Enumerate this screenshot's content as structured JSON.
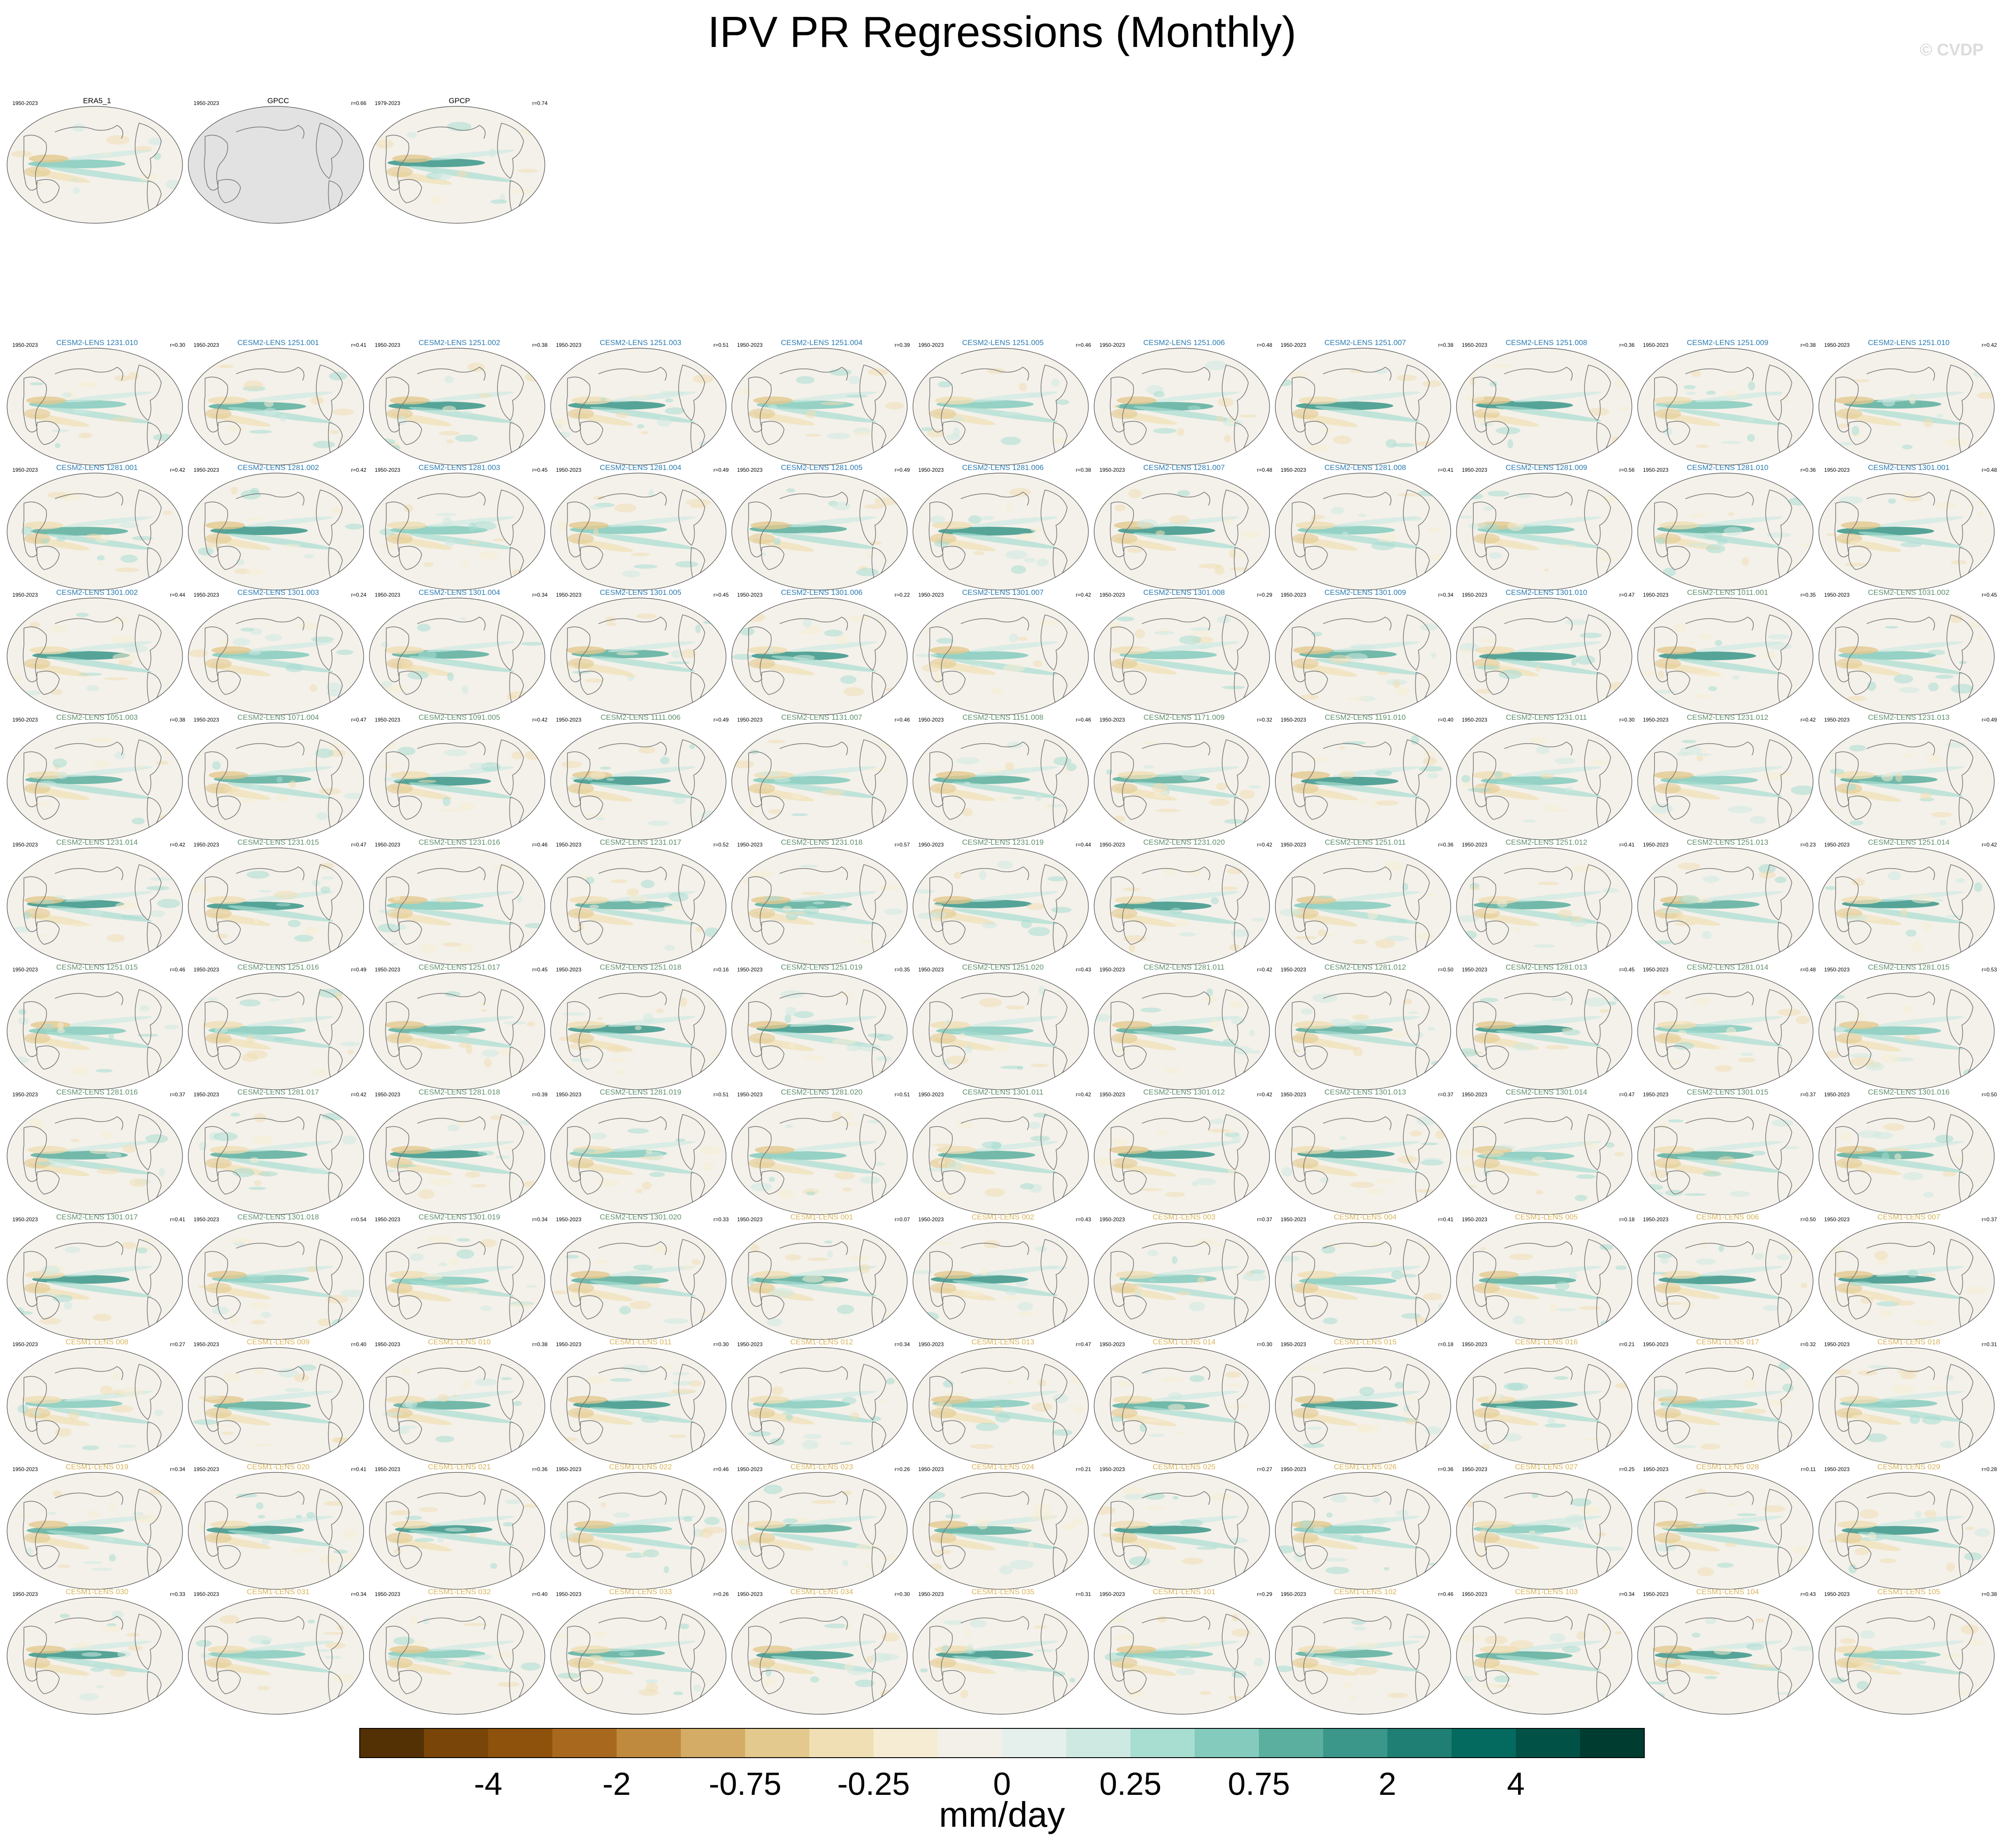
{
  "title": "IPV PR Regressions (Monthly)",
  "copyright": "© CVDP",
  "colors": {
    "cesm2_label": "#2b7bb0",
    "cesm2_smbb_label": "#5f8f6a",
    "cesm1_label": "#d9b45a",
    "obs_label": "#000000",
    "ocean_bg": "#f4f1ea",
    "missing_gray": "#e2e2e2"
  },
  "chart_data": {
    "type": "heatmap",
    "description_units": "mm/day",
    "colorbar": {
      "label": "mm/day",
      "tick_labels": [
        "-4",
        "-2",
        "-0.75",
        "-0.25",
        "0",
        "0.25",
        "0.75",
        "2",
        "4"
      ],
      "colors": [
        "#543005",
        "#7a4508",
        "#8f520c",
        "#a8691e",
        "#c08a3e",
        "#d4ac66",
        "#e3c98e",
        "#f0dfb4",
        "#f6ecd3",
        "#f3f0ea",
        "#e5f0ec",
        "#cde9e2",
        "#a8ddd1",
        "#84cbbd",
        "#5aaf9f",
        "#3a978a",
        "#1f7f74",
        "#046a60",
        "#015146",
        "#003c30"
      ]
    },
    "observations": [
      {
        "name": "ERA5_1",
        "years": "1950-2023",
        "r": ""
      },
      {
        "name": "GPCC",
        "years": "1950-2023",
        "r": "r=0.66"
      },
      {
        "name": "GPCP",
        "years": "1979-2023",
        "r": "r=0.74"
      }
    ],
    "members": [
      {
        "name": "CESM2-LENS 1231.010",
        "years": "1950-2023",
        "r": "r=0.30",
        "g": "c2"
      },
      {
        "name": "CESM2-LENS 1251.001",
        "years": "1950-2023",
        "r": "r=0.41",
        "g": "c2"
      },
      {
        "name": "CESM2-LENS 1251.002",
        "years": "1950-2023",
        "r": "r=0.38",
        "g": "c2"
      },
      {
        "name": "CESM2-LENS 1251.003",
        "years": "1950-2023",
        "r": "r=0.51",
        "g": "c2"
      },
      {
        "name": "CESM2-LENS 1251.004",
        "years": "1950-2023",
        "r": "r=0.39",
        "g": "c2"
      },
      {
        "name": "CESM2-LENS 1251.005",
        "years": "1950-2023",
        "r": "r=0.46",
        "g": "c2"
      },
      {
        "name": "CESM2-LENS 1251.006",
        "years": "1950-2023",
        "r": "r=0.48",
        "g": "c2"
      },
      {
        "name": "CESM2-LENS 1251.007",
        "years": "1950-2023",
        "r": "r=0.38",
        "g": "c2"
      },
      {
        "name": "CESM2-LENS 1251.008",
        "years": "1950-2023",
        "r": "r=0.36",
        "g": "c2"
      },
      {
        "name": "CESM2-LENS 1251.009",
        "years": "1950-2023",
        "r": "r=0.38",
        "g": "c2"
      },
      {
        "name": "CESM2-LENS 1251.010",
        "years": "1950-2023",
        "r": "r=0.42",
        "g": "c2"
      },
      {
        "name": "CESM2-LENS 1281.001",
        "years": "1950-2023",
        "r": "r=0.42",
        "g": "c2"
      },
      {
        "name": "CESM2-LENS 1281.002",
        "years": "1950-2023",
        "r": "r=0.42",
        "g": "c2"
      },
      {
        "name": "CESM2-LENS 1281.003",
        "years": "1950-2023",
        "r": "r=0.45",
        "g": "c2"
      },
      {
        "name": "CESM2-LENS 1281.004",
        "years": "1950-2023",
        "r": "r=0.49",
        "g": "c2"
      },
      {
        "name": "CESM2-LENS 1281.005",
        "years": "1950-2023",
        "r": "r=0.49",
        "g": "c2"
      },
      {
        "name": "CESM2-LENS 1281.006",
        "years": "1950-2023",
        "r": "r=0.38",
        "g": "c2"
      },
      {
        "name": "CESM2-LENS 1281.007",
        "years": "1950-2023",
        "r": "r=0.48",
        "g": "c2"
      },
      {
        "name": "CESM2-LENS 1281.008",
        "years": "1950-2023",
        "r": "r=0.41",
        "g": "c2"
      },
      {
        "name": "CESM2-LENS 1281.009",
        "years": "1950-2023",
        "r": "r=0.56",
        "g": "c2"
      },
      {
        "name": "CESM2-LENS 1281.010",
        "years": "1950-2023",
        "r": "r=0.36",
        "g": "c2"
      },
      {
        "name": "CESM2-LENS 1301.001",
        "years": "1950-2023",
        "r": "r=0.48",
        "g": "c2"
      },
      {
        "name": "CESM2-LENS 1301.002",
        "years": "1950-2023",
        "r": "r=0.44",
        "g": "c2"
      },
      {
        "name": "CESM2-LENS 1301.003",
        "years": "1950-2023",
        "r": "r=0.24",
        "g": "c2"
      },
      {
        "name": "CESM2-LENS 1301.004",
        "years": "1950-2023",
        "r": "r=0.34",
        "g": "c2"
      },
      {
        "name": "CESM2-LENS 1301.005",
        "years": "1950-2023",
        "r": "r=0.45",
        "g": "c2"
      },
      {
        "name": "CESM2-LENS 1301.006",
        "years": "1950-2023",
        "r": "r=0.22",
        "g": "c2"
      },
      {
        "name": "CESM2-LENS 1301.007",
        "years": "1950-2023",
        "r": "r=0.42",
        "g": "c2"
      },
      {
        "name": "CESM2-LENS 1301.008",
        "years": "1950-2023",
        "r": "r=0.29",
        "g": "c2"
      },
      {
        "name": "CESM2-LENS 1301.009",
        "years": "1950-2023",
        "r": "r=0.34",
        "g": "c2"
      },
      {
        "name": "CESM2-LENS 1301.010",
        "years": "1950-2023",
        "r": "r=0.47",
        "g": "c2"
      },
      {
        "name": "CESM2-LENS 1011.001",
        "years": "1950-2023",
        "r": "r=0.35",
        "g": "s"
      },
      {
        "name": "CESM2-LENS 1031.002",
        "years": "1950-2023",
        "r": "r=0.45",
        "g": "s"
      },
      {
        "name": "CESM2-LENS 1051.003",
        "years": "1950-2023",
        "r": "r=0.38",
        "g": "s"
      },
      {
        "name": "CESM2-LENS 1071.004",
        "years": "1950-2023",
        "r": "r=0.47",
        "g": "s"
      },
      {
        "name": "CESM2-LENS 1091.005",
        "years": "1950-2023",
        "r": "r=0.42",
        "g": "s"
      },
      {
        "name": "CESM2-LENS 1111.006",
        "years": "1950-2023",
        "r": "r=0.49",
        "g": "s"
      },
      {
        "name": "CESM2-LENS 1131.007",
        "years": "1950-2023",
        "r": "r=0.46",
        "g": "s"
      },
      {
        "name": "CESM2-LENS 1151.008",
        "years": "1950-2023",
        "r": "r=0.46",
        "g": "s"
      },
      {
        "name": "CESM2-LENS 1171.009",
        "years": "1950-2023",
        "r": "r=0.32",
        "g": "s"
      },
      {
        "name": "CESM2-LENS 1191.010",
        "years": "1950-2023",
        "r": "r=0.40",
        "g": "s"
      },
      {
        "name": "CESM2-LENS 1231.011",
        "years": "1950-2023",
        "r": "r=0.30",
        "g": "s"
      },
      {
        "name": "CESM2-LENS 1231.012",
        "years": "1950-2023",
        "r": "r=0.42",
        "g": "s"
      },
      {
        "name": "CESM2-LENS 1231.013",
        "years": "1950-2023",
        "r": "r=0.49",
        "g": "s"
      },
      {
        "name": "CESM2-LENS 1231.014",
        "years": "1950-2023",
        "r": "r=0.42",
        "g": "s"
      },
      {
        "name": "CESM2-LENS 1231.015",
        "years": "1950-2023",
        "r": "r=0.47",
        "g": "s"
      },
      {
        "name": "CESM2-LENS 1231.016",
        "years": "1950-2023",
        "r": "r=0.46",
        "g": "s"
      },
      {
        "name": "CESM2-LENS 1231.017",
        "years": "1950-2023",
        "r": "r=0.52",
        "g": "s"
      },
      {
        "name": "CESM2-LENS 1231.018",
        "years": "1950-2023",
        "r": "r=0.57",
        "g": "s"
      },
      {
        "name": "CESM2-LENS 1231.019",
        "years": "1950-2023",
        "r": "r=0.44",
        "g": "s"
      },
      {
        "name": "CESM2-LENS 1231.020",
        "years": "1950-2023",
        "r": "r=0.42",
        "g": "s"
      },
      {
        "name": "CESM2-LENS 1251.011",
        "years": "1950-2023",
        "r": "r=0.36",
        "g": "s"
      },
      {
        "name": "CESM2-LENS 1251.012",
        "years": "1950-2023",
        "r": "r=0.41",
        "g": "s"
      },
      {
        "name": "CESM2-LENS 1251.013",
        "years": "1950-2023",
        "r": "r=0.23",
        "g": "s"
      },
      {
        "name": "CESM2-LENS 1251.014",
        "years": "1950-2023",
        "r": "r=0.42",
        "g": "s"
      },
      {
        "name": "CESM2-LENS 1251.015",
        "years": "1950-2023",
        "r": "r=0.46",
        "g": "s"
      },
      {
        "name": "CESM2-LENS 1251.016",
        "years": "1950-2023",
        "r": "r=0.49",
        "g": "s"
      },
      {
        "name": "CESM2-LENS 1251.017",
        "years": "1950-2023",
        "r": "r=0.45",
        "g": "s"
      },
      {
        "name": "CESM2-LENS 1251.018",
        "years": "1950-2023",
        "r": "r=0.16",
        "g": "s"
      },
      {
        "name": "CESM2-LENS 1251.019",
        "years": "1950-2023",
        "r": "r=0.35",
        "g": "s"
      },
      {
        "name": "CESM2-LENS 1251.020",
        "years": "1950-2023",
        "r": "r=0.43",
        "g": "s"
      },
      {
        "name": "CESM2-LENS 1281.011",
        "years": "1950-2023",
        "r": "r=0.42",
        "g": "s"
      },
      {
        "name": "CESM2-LENS 1281.012",
        "years": "1950-2023",
        "r": "r=0.50",
        "g": "s"
      },
      {
        "name": "CESM2-LENS 1281.013",
        "years": "1950-2023",
        "r": "r=0.45",
        "g": "s"
      },
      {
        "name": "CESM2-LENS 1281.014",
        "years": "1950-2023",
        "r": "r=0.48",
        "g": "s"
      },
      {
        "name": "CESM2-LENS 1281.015",
        "years": "1950-2023",
        "r": "r=0.53",
        "g": "s"
      },
      {
        "name": "CESM2-LENS 1281.016",
        "years": "1950-2023",
        "r": "r=0.37",
        "g": "s"
      },
      {
        "name": "CESM2-LENS 1281.017",
        "years": "1950-2023",
        "r": "r=0.42",
        "g": "s"
      },
      {
        "name": "CESM2-LENS 1281.018",
        "years": "1950-2023",
        "r": "r=0.39",
        "g": "s"
      },
      {
        "name": "CESM2-LENS 1281.019",
        "years": "1950-2023",
        "r": "r=0.51",
        "g": "s"
      },
      {
        "name": "CESM2-LENS 1281.020",
        "years": "1950-2023",
        "r": "r=0.51",
        "g": "s"
      },
      {
        "name": "CESM2-LENS 1301.011",
        "years": "1950-2023",
        "r": "r=0.42",
        "g": "s"
      },
      {
        "name": "CESM2-LENS 1301.012",
        "years": "1950-2023",
        "r": "r=0.42",
        "g": "s"
      },
      {
        "name": "CESM2-LENS 1301.013",
        "years": "1950-2023",
        "r": "r=0.37",
        "g": "s"
      },
      {
        "name": "CESM2-LENS 1301.014",
        "years": "1950-2023",
        "r": "r=0.47",
        "g": "s"
      },
      {
        "name": "CESM2-LENS 1301.015",
        "years": "1950-2023",
        "r": "r=0.37",
        "g": "s"
      },
      {
        "name": "CESM2-LENS 1301.016",
        "years": "1950-2023",
        "r": "r=0.50",
        "g": "s"
      },
      {
        "name": "CESM2-LENS 1301.017",
        "years": "1950-2023",
        "r": "r=0.41",
        "g": "s"
      },
      {
        "name": "CESM2-LENS 1301.018",
        "years": "1950-2023",
        "r": "r=0.54",
        "g": "s"
      },
      {
        "name": "CESM2-LENS 1301.019",
        "years": "1950-2023",
        "r": "r=0.34",
        "g": "s"
      },
      {
        "name": "CESM2-LENS 1301.020",
        "years": "1950-2023",
        "r": "r=0.33",
        "g": "s"
      },
      {
        "name": "CESM1-LENS 001",
        "years": "1950-2023",
        "r": "r=0.07",
        "g": "c1"
      },
      {
        "name": "CESM1-LENS 002",
        "years": "1950-2023",
        "r": "r=0.43",
        "g": "c1"
      },
      {
        "name": "CESM1-LENS 003",
        "years": "1950-2023",
        "r": "r=0.37",
        "g": "c1"
      },
      {
        "name": "CESM1-LENS 004",
        "years": "1950-2023",
        "r": "r=0.41",
        "g": "c1"
      },
      {
        "name": "CESM1-LENS 005",
        "years": "1950-2023",
        "r": "r=0.18",
        "g": "c1"
      },
      {
        "name": "CESM1-LENS 006",
        "years": "1950-2023",
        "r": "r=0.50",
        "g": "c1"
      },
      {
        "name": "CESM1-LENS 007",
        "years": "1950-2023",
        "r": "r=0.37",
        "g": "c1"
      },
      {
        "name": "CESM1-LENS 008",
        "years": "1950-2023",
        "r": "r=0.27",
        "g": "c1"
      },
      {
        "name": "CESM1-LENS 009",
        "years": "1950-2023",
        "r": "r=0.40",
        "g": "c1"
      },
      {
        "name": "CESM1-LENS 010",
        "years": "1950-2023",
        "r": "r=0.38",
        "g": "c1"
      },
      {
        "name": "CESM1-LENS 011",
        "years": "1950-2023",
        "r": "r=0.30",
        "g": "c1"
      },
      {
        "name": "CESM1-LENS 012",
        "years": "1950-2023",
        "r": "r=0.34",
        "g": "c1"
      },
      {
        "name": "CESM1-LENS 013",
        "years": "1950-2023",
        "r": "r=0.47",
        "g": "c1"
      },
      {
        "name": "CESM1-LENS 014",
        "years": "1950-2023",
        "r": "r=0.30",
        "g": "c1"
      },
      {
        "name": "CESM1-LENS 015",
        "years": "1950-2023",
        "r": "r=0.18",
        "g": "c1"
      },
      {
        "name": "CESM1-LENS 016",
        "years": "1950-2023",
        "r": "r=0.21",
        "g": "c1"
      },
      {
        "name": "CESM1-LENS 017",
        "years": "1950-2023",
        "r": "r=0.32",
        "g": "c1"
      },
      {
        "name": "CESM1-LENS 018",
        "years": "1950-2023",
        "r": "r=0.31",
        "g": "c1"
      },
      {
        "name": "CESM1-LENS 019",
        "years": "1950-2023",
        "r": "r=0.34",
        "g": "c1"
      },
      {
        "name": "CESM1-LENS 020",
        "years": "1950-2023",
        "r": "r=0.41",
        "g": "c1"
      },
      {
        "name": "CESM1-LENS 021",
        "years": "1950-2023",
        "r": "r=0.36",
        "g": "c1"
      },
      {
        "name": "CESM1-LENS 022",
        "years": "1950-2023",
        "r": "r=0.46",
        "g": "c1"
      },
      {
        "name": "CESM1-LENS 023",
        "years": "1950-2023",
        "r": "r=0.26",
        "g": "c1"
      },
      {
        "name": "CESM1-LENS 024",
        "years": "1950-2023",
        "r": "r=0.21",
        "g": "c1"
      },
      {
        "name": "CESM1-LENS 025",
        "years": "1950-2023",
        "r": "r=0.27",
        "g": "c1"
      },
      {
        "name": "CESM1-LENS 026",
        "years": "1950-2023",
        "r": "r=0.36",
        "g": "c1"
      },
      {
        "name": "CESM1-LENS 027",
        "years": "1950-2023",
        "r": "r=0.25",
        "g": "c1"
      },
      {
        "name": "CESM1-LENS 028",
        "years": "1950-2023",
        "r": "r=0.11",
        "g": "c1"
      },
      {
        "name": "CESM1-LENS 029",
        "years": "1950-2023",
        "r": "r=0.28",
        "g": "c1"
      },
      {
        "name": "CESM1-LENS 030",
        "years": "1950-2023",
        "r": "r=0.33",
        "g": "c1"
      },
      {
        "name": "CESM1-LENS 031",
        "years": "1950-2023",
        "r": "r=0.34",
        "g": "c1"
      },
      {
        "name": "CESM1-LENS 032",
        "years": "1950-2023",
        "r": "r=0.40",
        "g": "c1"
      },
      {
        "name": "CESM1-LENS 033",
        "years": "1950-2023",
        "r": "r=0.26",
        "g": "c1"
      },
      {
        "name": "CESM1-LENS 034",
        "years": "1950-2023",
        "r": "r=0.30",
        "g": "c1"
      },
      {
        "name": "CESM1-LENS 035",
        "years": "1950-2023",
        "r": "r=0.31",
        "g": "c1"
      },
      {
        "name": "CESM1-LENS 101",
        "years": "1950-2023",
        "r": "r=0.29",
        "g": "c1"
      },
      {
        "name": "CESM1-LENS 102",
        "years": "1950-2023",
        "r": "r=0.46",
        "g": "c1"
      },
      {
        "name": "CESM1-LENS 103",
        "years": "1950-2023",
        "r": "r=0.34",
        "g": "c1"
      },
      {
        "name": "CESM1-LENS 104",
        "years": "1950-2023",
        "r": "r=0.43",
        "g": "c1"
      },
      {
        "name": "CESM1-LENS 105",
        "years": "1950-2023",
        "r": "r=0.38",
        "g": "c1"
      }
    ]
  }
}
